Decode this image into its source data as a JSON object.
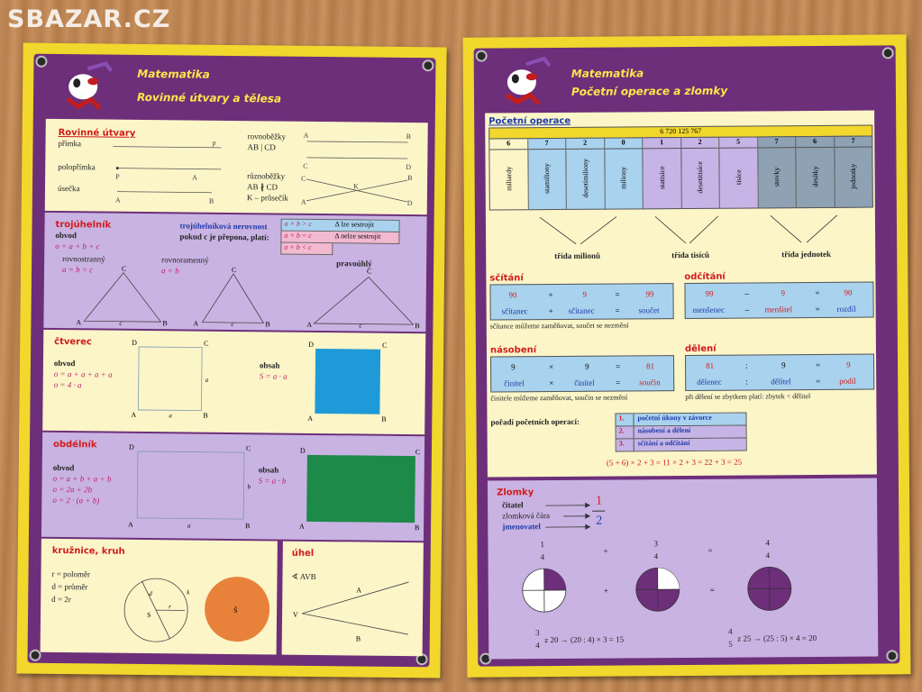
{
  "watermark": "SBAZAR.CZ",
  "left": {
    "title": "Matematika",
    "subtitle": "Rovinné útvary a tělesa",
    "rovinne": {
      "heading": "Rovinné útvary",
      "primka": "přímka",
      "polopr": "polopřímka",
      "usecka": "úsečka",
      "rovnobezky": "rovnoběžky",
      "ab_cd": "AB | CD",
      "ruznobezky": "různoběžky",
      "ab_ncd": "AB ∦ CD",
      "k_prusecik": "K – průsečík"
    },
    "troj": {
      "heading": "trojúhelník",
      "obvod": "obvod",
      "vzorec": "o = a + b + c",
      "rovnostranny": "rovnostranný",
      "rovn_v": "a = b = c",
      "rovnoramenny": "rovnoramenný",
      "ram_v": "a = b",
      "pravouhly": "pravoúhlý",
      "nerovnost": "trojúhelníková nerovnost",
      "prepona": "pokud c je přepona, platí:",
      "ineq": [
        {
          "f": "a + b > c",
          "r": "Δ lze sestrojit"
        },
        {
          "f": "a + b = c",
          "r": "Δ nelze sestrojit"
        },
        {
          "f": "a + b < c",
          "r": ""
        }
      ]
    },
    "ctverec": {
      "heading": "čtverec",
      "obvod": "obvod",
      "v1": "o = a + a + a + a",
      "v2": "o = 4 · a",
      "obsah": "obsah",
      "s": "S = a · a"
    },
    "obdelnik": {
      "heading": "obdélník",
      "obvod": "obvod",
      "v1": "o = a + b + a + b",
      "v2": "o = 2a + 2b",
      "v3": "o = 2 · (a + b)",
      "obsah": "obsah",
      "s": "S = a · b"
    },
    "kruh": {
      "heading": "kružnice, kruh",
      "r": "r = poloměr",
      "d": "d = průměr",
      "d2": "d = 2r"
    },
    "uhel": {
      "heading": "úhel",
      "label": "∢ AVB"
    }
  },
  "right": {
    "title": "Matematika",
    "subtitle": "Početní operace a zlomky",
    "po_heading": "Početní operace",
    "number": "6 720 125 767",
    "digits": [
      "6",
      "7",
      "2",
      "0",
      "1",
      "2",
      "5",
      "7",
      "6",
      "7"
    ],
    "places": [
      "miliardy",
      "stamiliony",
      "desetimiliony",
      "miliony",
      "statisíce",
      "desetitisíce",
      "tisíce",
      "stovky",
      "desítky",
      "jednotky"
    ],
    "tridy": [
      "třída milionů",
      "třída tisíců",
      "třída jednotek"
    ],
    "scitani": {
      "heading": "sčítání",
      "a": "90",
      "op": "+",
      "b": "9",
      "eq": "=",
      "r": "99",
      "la": "sčítanec",
      "lop": "+",
      "lb": "sčítanec",
      "leq": "=",
      "lr": "součet",
      "note": "sčítance můžeme zaměňovat, součet se nezmění"
    },
    "odcitani": {
      "heading": "odčítání",
      "a": "99",
      "op": "–",
      "b": "9",
      "eq": "=",
      "r": "90",
      "la": "menšenec",
      "lop": "–",
      "lb": "menšitel",
      "leq": "=",
      "lr": "rozdíl"
    },
    "nasobeni": {
      "heading": "násobení",
      "a": "9",
      "op": "×",
      "b": "9",
      "eq": "=",
      "r": "81",
      "la": "činitel",
      "lop": "×",
      "lb": "činitel",
      "leq": "=",
      "lr": "součin",
      "note": "činitele můžeme zaměňovat, součin se nezmění"
    },
    "deleni": {
      "heading": "dělení",
      "a": "81",
      "op": ":",
      "b": "9",
      "eq": "=",
      "r": "9",
      "la": "dělenec",
      "lop": ":",
      "lb": "dělitel",
      "leq": "=",
      "lr": "podíl",
      "note": "při dělení se zbytkem platí: zbytek < dělitel"
    },
    "poradi": {
      "heading": "pořadí početních operací:",
      "items": [
        {
          "n": "1.",
          "t": "početní úkony v závorce"
        },
        {
          "n": "2.",
          "t": "násobení a dělení"
        },
        {
          "n": "3.",
          "t": "sčítání a odčítání"
        }
      ],
      "example": "(5 + 6) × 2 + 3 = 11 × 2 + 3 = 22 + 3 = 25"
    },
    "zlomky": {
      "heading": "Zlomky",
      "citatel": "čitatel",
      "cara": "zlomková čára",
      "jmenovatel": "jmenovatel",
      "num": "1",
      "den": "2",
      "f1n": "1",
      "f1d": "4",
      "plus": "+",
      "f2n": "3",
      "f2d": "4",
      "eq": "=",
      "f3n": "4",
      "f3d": "4",
      "ex1": "z 20 → (20 : 4) × 3 = 15",
      "ex1n": "3",
      "ex1d": "4",
      "ex2": "z 25 → (25 : 5) × 4 = 20",
      "ex2n": "4",
      "ex2d": "5"
    }
  },
  "colors": {
    "card": "#f2d72c",
    "frame": "#6d2f7a",
    "cream": "#fbf5c8",
    "lilac": "#c9b3e2",
    "blue": "#1f9ad8",
    "green": "#1d8a4a",
    "orange": "#e8823a",
    "cell_blue": "#a9d2ee",
    "cell_lilac": "#c6b4e6",
    "cell_gray": "#8ea2b4"
  }
}
